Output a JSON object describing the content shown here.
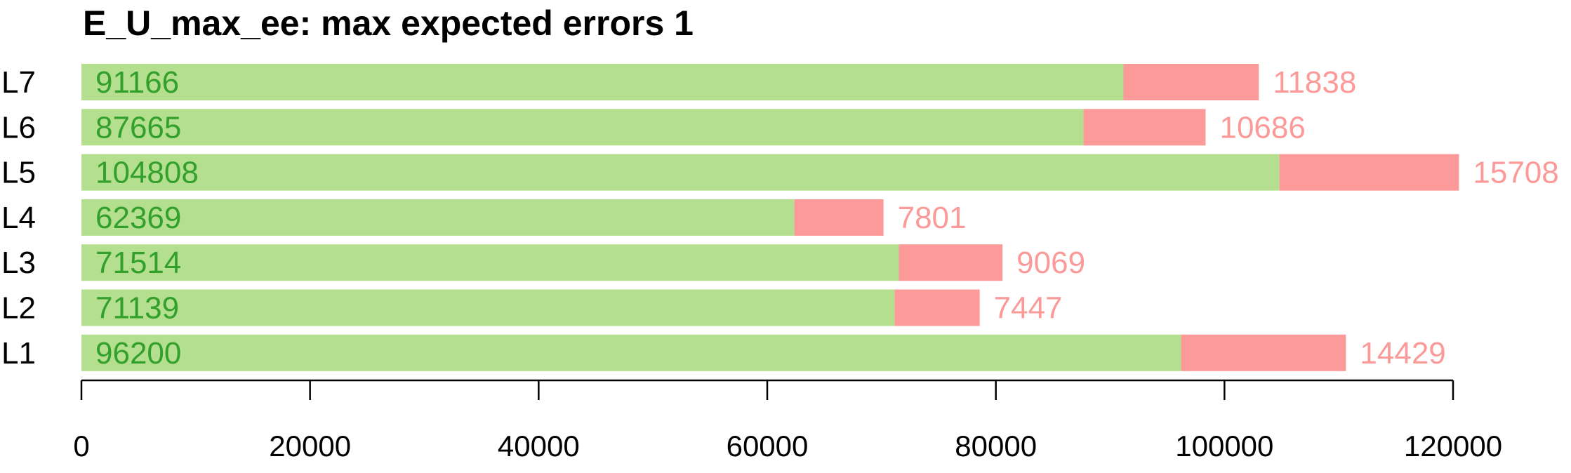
{
  "chart_data": {
    "type": "bar",
    "orientation": "horizontal",
    "stacked": true,
    "title": "E_U_max_ee: max expected errors 1",
    "categories": [
      "L7",
      "L6",
      "L5",
      "L4",
      "L3",
      "L2",
      "L1"
    ],
    "series": [
      {
        "values": [
          91166,
          87665,
          104808,
          62369,
          71514,
          71139,
          96200
        ],
        "color": "#b3df8f",
        "label_color": "#33a02c",
        "label_position": "inside-start"
      },
      {
        "values": [
          11838,
          10686,
          15708,
          7801,
          9069,
          7447,
          14429
        ],
        "color": "#fb9a99",
        "label_color": "#fb9a99",
        "label_position": "outside-end"
      }
    ],
    "xlim": [
      0,
      120000
    ],
    "xticks": [
      "0",
      "20000",
      "40000",
      "60000",
      "80000",
      "100000",
      "120000"
    ],
    "grid": false
  }
}
